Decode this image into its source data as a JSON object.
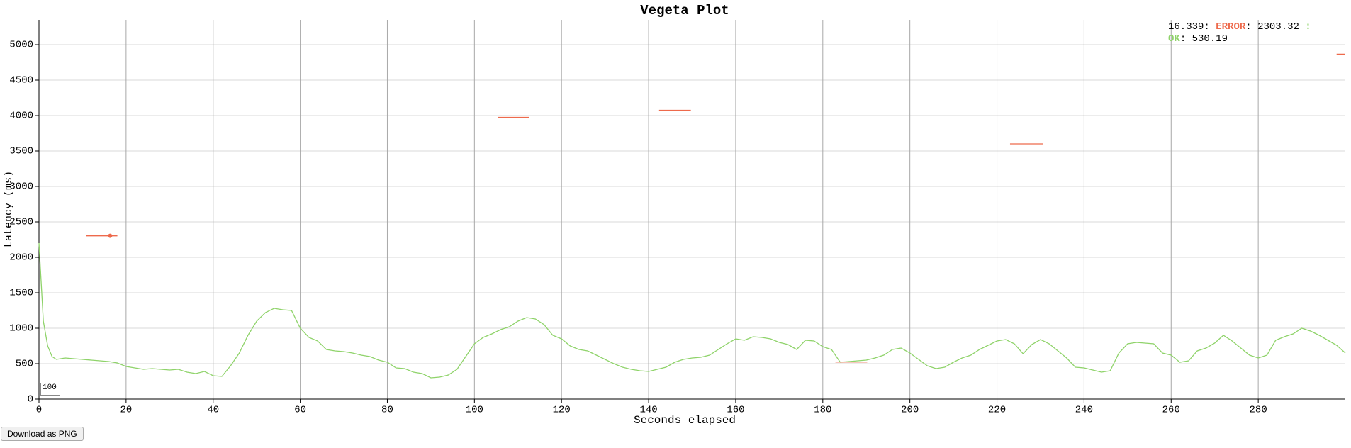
{
  "chart_data": {
    "type": "line",
    "title": "Vegeta Plot",
    "x_label": "Seconds elapsed",
    "y_label": "Latency (ms)",
    "xlim": [
      0,
      300
    ],
    "ylim": [
      0,
      5350
    ],
    "xticks": [
      0,
      20,
      40,
      60,
      80,
      100,
      120,
      140,
      160,
      180,
      200,
      220,
      240,
      260,
      280
    ],
    "yticks": [
      0,
      500,
      1000,
      1500,
      2000,
      2500,
      3000,
      3500,
      4000,
      4500,
      5000
    ],
    "grid": {
      "x": true,
      "y": true
    },
    "series": [
      {
        "name": "OK",
        "color": "#8fd36a",
        "x": [
          0,
          1,
          2,
          3,
          4,
          6,
          8,
          10,
          12,
          14,
          16,
          18,
          20,
          22,
          24,
          26,
          28,
          30,
          32,
          34,
          36,
          38,
          40,
          42,
          44,
          46,
          48,
          50,
          52,
          54,
          56,
          58,
          60,
          62,
          64,
          66,
          68,
          70,
          72,
          74,
          76,
          78,
          80,
          82,
          84,
          86,
          88,
          90,
          92,
          94,
          96,
          98,
          100,
          102,
          104,
          106,
          108,
          110,
          112,
          114,
          116,
          118,
          120,
          122,
          124,
          126,
          128,
          130,
          132,
          134,
          136,
          138,
          140,
          142,
          144,
          146,
          148,
          150,
          152,
          154,
          156,
          158,
          160,
          162,
          164,
          166,
          168,
          170,
          172,
          174,
          176,
          178,
          180,
          182,
          184,
          186,
          188,
          190,
          192,
          194,
          196,
          198,
          200,
          202,
          204,
          206,
          208,
          210,
          212,
          214,
          216,
          218,
          220,
          222,
          224,
          226,
          228,
          230,
          232,
          234,
          236,
          238,
          240,
          242,
          244,
          246,
          248,
          250,
          252,
          254,
          256,
          258,
          260,
          262,
          264,
          266,
          268,
          270,
          272,
          274,
          276,
          278,
          280,
          282,
          284,
          286,
          288,
          290,
          292,
          294,
          296,
          298,
          300
        ],
        "values": [
          2200,
          1100,
          750,
          600,
          560,
          580,
          570,
          560,
          550,
          540,
          530,
          510,
          460,
          440,
          420,
          430,
          420,
          410,
          420,
          380,
          360,
          390,
          330,
          320,
          470,
          650,
          900,
          1100,
          1220,
          1280,
          1260,
          1250,
          1000,
          870,
          820,
          700,
          680,
          670,
          650,
          620,
          600,
          550,
          520,
          440,
          430,
          380,
          360,
          300,
          310,
          340,
          420,
          600,
          780,
          870,
          920,
          980,
          1020,
          1100,
          1150,
          1130,
          1050,
          900,
          850,
          750,
          700,
          680,
          620,
          560,
          500,
          450,
          420,
          400,
          390,
          420,
          450,
          520,
          560,
          580,
          590,
          620,
          700,
          780,
          850,
          830,
          880,
          870,
          850,
          800,
          770,
          700,
          830,
          820,
          740,
          700,
          520,
          530,
          540,
          550,
          580,
          620,
          700,
          720,
          650,
          560,
          470,
          430,
          450,
          520,
          580,
          620,
          700,
          760,
          820,
          840,
          780,
          640,
          770,
          840,
          780,
          680,
          580,
          450,
          440,
          410,
          380,
          400,
          650,
          780,
          800,
          790,
          780,
          650,
          620,
          520,
          540,
          680,
          720,
          790,
          900,
          820,
          720,
          620,
          580,
          620,
          830,
          880,
          920,
          1000,
          960,
          900,
          830,
          760,
          650
        ]
      },
      {
        "name": "ERROR",
        "color": "#ee6a4c",
        "x": [
          10.9,
          18.0,
          18.1,
          105.4,
          112.5,
          112.6,
          142.4,
          149.7,
          149.8,
          182.9,
          190.2,
          190.3,
          223.0,
          230.6,
          230.7,
          298.0,
          300
        ],
        "values": [
          2303,
          2303,
          null,
          3975,
          3975,
          null,
          4075,
          4075,
          null,
          523,
          523,
          null,
          3600,
          3600,
          null,
          4866,
          4866
        ]
      }
    ],
    "hover": {
      "x": 16.339,
      "error": 2303.32,
      "ok": 530.19
    }
  },
  "controls": {
    "roll_period": "100",
    "download_button": "Download as PNG"
  }
}
